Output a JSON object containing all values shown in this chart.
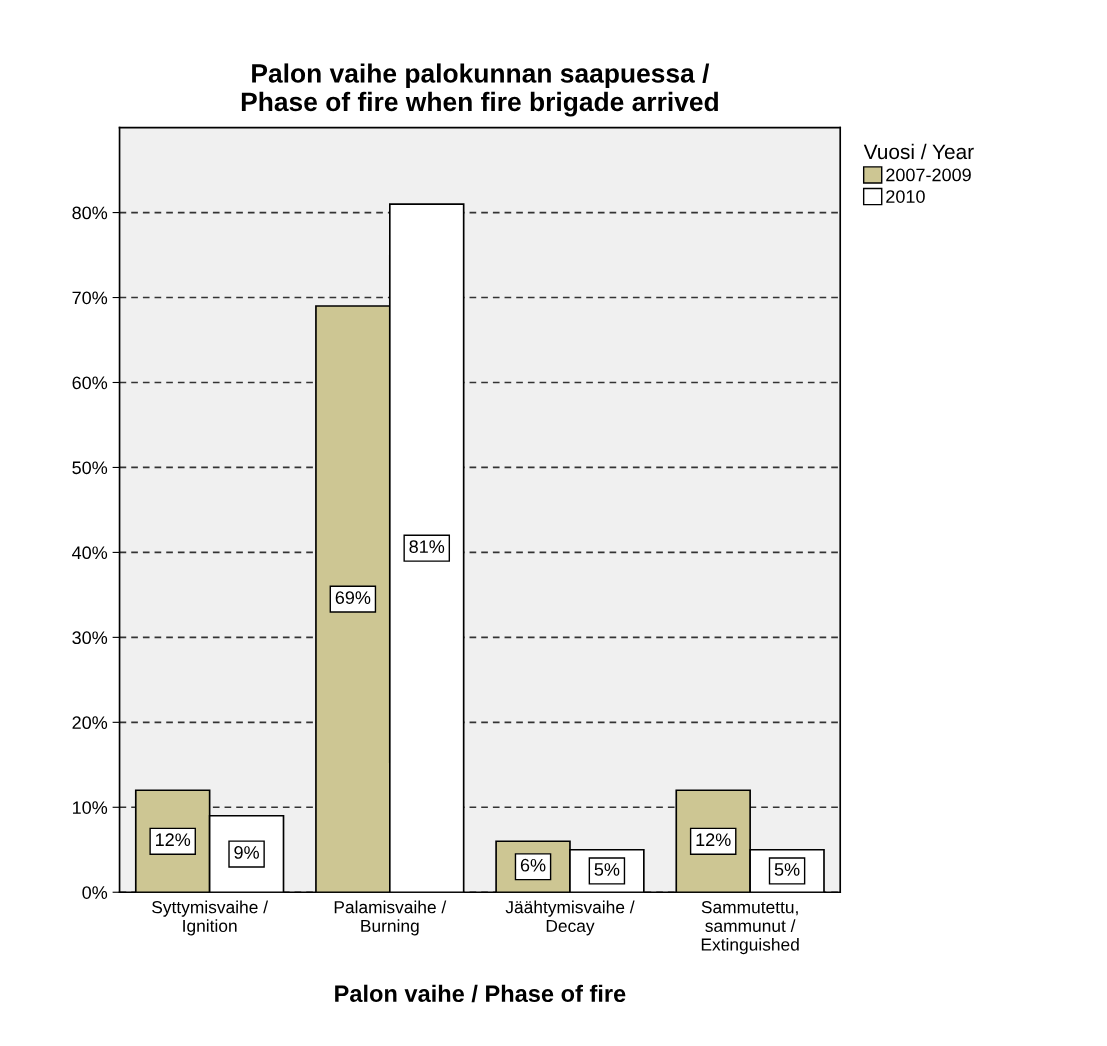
{
  "chart_data": {
    "type": "bar",
    "title": "Palon vaihe palokunnan saapuessa /\nPhase of fire when fire brigade arrived",
    "xlabel": "Palon vaihe / Phase of fire",
    "legend_title": "Vuosi / Year",
    "categories": [
      "Syttymisvaihe /\nIgnition",
      "Palamisvaihe /\nBurning",
      "Jäähtymisvaihe /\nDecay",
      "Sammutettu,\nsammunut /\nExtinguished"
    ],
    "series": [
      {
        "name": "2007-2009",
        "color": "#cdc693",
        "values": [
          12,
          69,
          6,
          12
        ],
        "value_labels": [
          "12%",
          "69%",
          "6%",
          "12%"
        ]
      },
      {
        "name": "2010",
        "color": "#ffffff",
        "values": [
          9,
          81,
          5,
          5
        ],
        "value_labels": [
          "9%",
          "81%",
          "5%",
          "5%"
        ]
      }
    ],
    "ylim": [
      0,
      90
    ],
    "yticks": [
      {
        "value": 0,
        "label": "0%"
      },
      {
        "value": 10,
        "label": "10%"
      },
      {
        "value": 20,
        "label": "20%"
      },
      {
        "value": 30,
        "label": "30%"
      },
      {
        "value": 40,
        "label": "40%"
      },
      {
        "value": 50,
        "label": "50%"
      },
      {
        "value": 60,
        "label": "60%"
      },
      {
        "value": 70,
        "label": "70%"
      },
      {
        "value": 80,
        "label": "80%"
      }
    ],
    "grid": "y",
    "line_style": "dashed",
    "legend": "top right"
  }
}
